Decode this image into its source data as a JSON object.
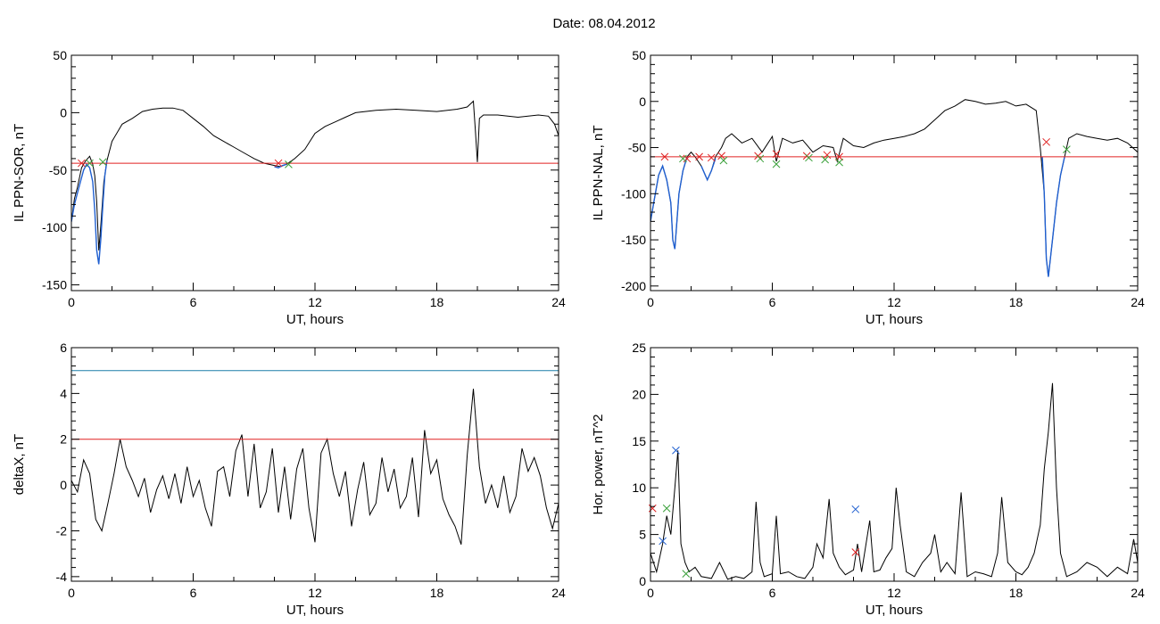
{
  "title": "Date:  08.04.2012",
  "chart_data": [
    {
      "type": "line",
      "ylabel": "IL PPN-SOR, nT",
      "xlabel": "UT, hours",
      "xlim": [
        0,
        24
      ],
      "ylim": [
        -155,
        50
      ],
      "xticks": [
        0,
        6,
        12,
        18,
        24
      ],
      "yticks": [
        -150,
        -100,
        -50,
        0,
        50
      ],
      "series": [
        {
          "color": "#000000",
          "x": [
            0,
            0.15,
            0.3,
            0.5,
            0.7,
            0.9,
            1.05,
            1.15,
            1.25,
            1.35,
            1.45,
            1.6,
            1.75,
            2,
            2.5,
            3,
            3.5,
            4,
            4.5,
            5,
            5.5,
            6,
            6.5,
            7,
            7.5,
            8,
            8.5,
            9,
            9.5,
            10,
            10.3,
            10.6,
            11,
            11.5,
            12,
            12.5,
            13,
            13.5,
            14,
            15,
            16,
            17,
            18,
            19,
            19.5,
            19.8,
            19.9,
            20,
            20.1,
            20.3,
            21,
            22,
            23,
            23.5,
            23.8,
            24
          ],
          "y": [
            -95,
            -75,
            -65,
            -48,
            -42,
            -38,
            -45,
            -55,
            -78,
            -120,
            -98,
            -60,
            -42,
            -25,
            -10,
            -5,
            1,
            3,
            4,
            4,
            2,
            -5,
            -12,
            -20,
            -25,
            -30,
            -35,
            -40,
            -44,
            -46,
            -47,
            -45,
            -40,
            -32,
            -18,
            -12,
            -8,
            -4,
            0,
            2,
            3,
            2,
            1,
            3,
            5,
            10,
            -15,
            -43,
            -5,
            -2,
            -2,
            -4,
            -2,
            -3,
            -10,
            -20
          ]
        },
        {
          "color": "#1f5fd0",
          "x": [
            0,
            0.15,
            0.3,
            0.45,
            0.6,
            0.75,
            0.9,
            1.05,
            1.15,
            1.25,
            1.35,
            1.45,
            1.55,
            1.65,
            1.75
          ],
          "y": [
            -95,
            -80,
            -70,
            -60,
            -50,
            -45,
            -48,
            -60,
            -85,
            -120,
            -132,
            -110,
            -80,
            -55,
            -42
          ]
        },
        {
          "color": "#1f5fd0",
          "x": [
            10,
            10.2,
            10.4,
            10.6
          ],
          "y": [
            -47,
            -48,
            -46,
            -45
          ]
        },
        {
          "color": "#e02020",
          "x": [
            0,
            24
          ],
          "y": [
            -44,
            -44
          ]
        }
      ],
      "markers": [
        {
          "color": "#e02020",
          "x": [
            0.5,
            10.2
          ],
          "y": [
            -44,
            -44
          ]
        },
        {
          "color": "#3aa03a",
          "x": [
            0.9,
            1.55,
            10.7
          ],
          "y": [
            -44,
            -43,
            -45
          ]
        }
      ]
    },
    {
      "type": "line",
      "ylabel": "IL PPN-NAL, nT",
      "xlabel": "UT, hours",
      "xlim": [
        0,
        24
      ],
      "ylim": [
        -205,
        50
      ],
      "xticks": [
        0,
        6,
        12,
        18,
        24
      ],
      "yticks": [
        -200,
        -150,
        -100,
        -50,
        0,
        50
      ],
      "series": [
        {
          "color": "#000000",
          "x": [
            0,
            0.2,
            0.4,
            0.6,
            0.8,
            1,
            1.1,
            1.2,
            1.4,
            1.6,
            1.8,
            2,
            2.2,
            2.5,
            2.8,
            3,
            3.2,
            3.5,
            3.7,
            4,
            4.5,
            5,
            5.5,
            6,
            6.2,
            6.5,
            7,
            7.5,
            8,
            8.5,
            9,
            9.2,
            9.5,
            10,
            10.5,
            11,
            11.5,
            12,
            12.5,
            13,
            13.5,
            14,
            14.5,
            15,
            15.5,
            16,
            16.5,
            17,
            17.5,
            18,
            18.5,
            19,
            19.2,
            19.4,
            19.5,
            19.6,
            19.8,
            20,
            20.2,
            20.4,
            20.6,
            21,
            21.5,
            22,
            22.5,
            23,
            23.5,
            24
          ],
          "y": [
            -130,
            -105,
            -80,
            -70,
            -85,
            -110,
            -150,
            -160,
            -100,
            -75,
            -60,
            -55,
            -60,
            -70,
            -85,
            -75,
            -60,
            -50,
            -40,
            -35,
            -45,
            -40,
            -55,
            -38,
            -65,
            -40,
            -45,
            -42,
            -55,
            -48,
            -50,
            -65,
            -40,
            -48,
            -50,
            -45,
            -42,
            -40,
            -38,
            -35,
            -30,
            -20,
            -10,
            -5,
            2,
            0,
            -3,
            -2,
            0,
            -5,
            -3,
            -10,
            -50,
            -100,
            -170,
            -190,
            -150,
            -110,
            -80,
            -60,
            -40,
            -35,
            -38,
            -40,
            -42,
            -40,
            -45,
            -55
          ]
        },
        {
          "color": "#1f5fd0",
          "x": [
            0,
            0.2,
            0.4,
            0.6,
            0.8,
            1,
            1.1,
            1.2,
            1.4,
            1.6,
            1.8
          ],
          "y": [
            -130,
            -105,
            -80,
            -70,
            -85,
            -110,
            -150,
            -160,
            -100,
            -75,
            -60
          ]
        },
        {
          "color": "#1f5fd0",
          "x": [
            2.5,
            2.8,
            3,
            3.2
          ],
          "y": [
            -70,
            -85,
            -75,
            -62
          ]
        },
        {
          "color": "#1f5fd0",
          "x": [
            19.3,
            19.4,
            19.5,
            19.6,
            19.8,
            20,
            20.2,
            20.4
          ],
          "y": [
            -60,
            -100,
            -170,
            -190,
            -150,
            -110,
            -80,
            -60
          ]
        },
        {
          "color": "#e02020",
          "x": [
            0,
            24
          ],
          "y": [
            -60,
            -60
          ]
        }
      ],
      "markers": [
        {
          "color": "#e02020",
          "x": [
            0.7,
            1.8,
            2.4,
            3.0,
            3.5,
            5.3,
            6.2,
            7.7,
            8.7,
            9.3,
            19.5
          ],
          "y": [
            -60,
            -62,
            -60,
            -61,
            -59,
            -59,
            -57,
            -59,
            -58,
            -60,
            -44
          ]
        },
        {
          "color": "#3aa03a",
          "x": [
            1.6,
            3.6,
            5.4,
            6.2,
            7.8,
            8.6,
            9.3,
            20.5
          ],
          "y": [
            -62,
            -64,
            -62,
            -68,
            -61,
            -63,
            -66,
            -52
          ]
        }
      ]
    },
    {
      "type": "line",
      "ylabel": "deltaX, nT",
      "xlabel": "UT, hours",
      "xlim": [
        0,
        24
      ],
      "ylim": [
        -4.2,
        6
      ],
      "xticks": [
        0,
        6,
        12,
        18,
        24
      ],
      "yticks": [
        -4,
        -2,
        0,
        2,
        4,
        6
      ],
      "series": [
        {
          "color": "#000000",
          "x": [
            0,
            0.3,
            0.6,
            0.9,
            1.2,
            1.5,
            1.8,
            2.1,
            2.4,
            2.7,
            3,
            3.3,
            3.6,
            3.9,
            4.2,
            4.5,
            4.8,
            5.1,
            5.4,
            5.7,
            6,
            6.3,
            6.6,
            6.9,
            7.2,
            7.5,
            7.8,
            8.1,
            8.4,
            8.7,
            9,
            9.3,
            9.6,
            9.9,
            10.2,
            10.5,
            10.8,
            11.1,
            11.4,
            11.7,
            12,
            12.3,
            12.6,
            12.9,
            13.2,
            13.5,
            13.8,
            14.1,
            14.4,
            14.7,
            15,
            15.3,
            15.6,
            15.9,
            16.2,
            16.5,
            16.8,
            17.1,
            17.4,
            17.7,
            18,
            18.3,
            18.6,
            18.9,
            19.2,
            19.5,
            19.8,
            20.1,
            20.4,
            20.7,
            21,
            21.3,
            21.6,
            21.9,
            22.2,
            22.5,
            22.8,
            23.1,
            23.4,
            23.7,
            24
          ],
          "y": [
            0.2,
            -0.3,
            1.1,
            0.5,
            -1.5,
            -2.0,
            -0.8,
            0.5,
            2.0,
            0.8,
            0.2,
            -0.5,
            0.3,
            -1.2,
            -0.2,
            0.4,
            -0.6,
            0.5,
            -0.8,
            0.8,
            -0.5,
            0.2,
            -1.0,
            -1.8,
            0.6,
            0.8,
            -0.5,
            1.5,
            2.2,
            -0.5,
            1.8,
            -1.0,
            -0.3,
            1.6,
            -1.2,
            0.8,
            -1.5,
            0.7,
            1.6,
            -1.0,
            -2.5,
            1.4,
            2.0,
            0.5,
            -0.5,
            0.6,
            -1.8,
            -0.2,
            1.0,
            -1.3,
            -0.8,
            1.2,
            -0.3,
            0.7,
            -1.0,
            -0.5,
            1.2,
            -1.4,
            2.4,
            0.5,
            1.1,
            -0.6,
            -1.3,
            -1.8,
            -2.6,
            1.3,
            4.2,
            0.8,
            -0.8,
            0.0,
            -1.0,
            0.4,
            -1.2,
            -0.5,
            1.6,
            0.6,
            1.2,
            0.4,
            -1.0,
            -1.9,
            -0.8
          ]
        },
        {
          "color": "#1b7fa8",
          "x": [
            0,
            24
          ],
          "y": [
            5,
            5
          ]
        },
        {
          "color": "#e02020",
          "x": [
            0,
            24
          ],
          "y": [
            2,
            2
          ]
        }
      ]
    },
    {
      "type": "line",
      "ylabel": "Hor. power, nT^2",
      "xlabel": "UT, hours",
      "xlim": [
        0,
        24
      ],
      "ylim": [
        0,
        25
      ],
      "xticks": [
        0,
        6,
        12,
        18,
        24
      ],
      "yticks": [
        0,
        5,
        10,
        15,
        20,
        25
      ],
      "series": [
        {
          "color": "#000000",
          "x": [
            0,
            0.3,
            0.6,
            0.8,
            1,
            1.2,
            1.35,
            1.5,
            1.7,
            1.9,
            2.2,
            2.5,
            3,
            3.4,
            3.8,
            4.2,
            4.6,
            5,
            5.2,
            5.4,
            5.6,
            6,
            6.2,
            6.4,
            6.8,
            7.2,
            7.6,
            8,
            8.2,
            8.5,
            8.8,
            9,
            9.3,
            9.6,
            10,
            10.2,
            10.4,
            10.8,
            11,
            11.3,
            11.6,
            11.9,
            12.1,
            12.3,
            12.6,
            13,
            13.4,
            13.8,
            14,
            14.3,
            14.6,
            15,
            15.3,
            15.6,
            16,
            16.4,
            16.8,
            17.1,
            17.3,
            17.6,
            18,
            18.3,
            18.6,
            18.9,
            19.2,
            19.4,
            19.6,
            19.8,
            20,
            20.2,
            20.5,
            21,
            21.5,
            22,
            22.5,
            23,
            23.5,
            23.8,
            24
          ],
          "y": [
            3,
            1,
            4,
            7,
            5,
            10,
            14,
            4,
            2,
            1,
            1.5,
            0.5,
            0.3,
            2,
            0.2,
            0.5,
            0.3,
            1,
            8.5,
            2,
            0.5,
            0.8,
            7,
            0.8,
            1,
            0.5,
            0.3,
            1.5,
            4,
            2.5,
            8.8,
            3,
            1.5,
            0.7,
            1.2,
            4,
            1,
            6.5,
            1,
            1.2,
            2.5,
            3.5,
            10,
            6,
            1,
            0.5,
            2,
            3,
            5,
            1,
            2,
            0.8,
            9.5,
            0.5,
            1,
            0.8,
            0.5,
            3,
            9,
            2,
            1,
            0.7,
            1.5,
            3,
            6,
            12,
            16,
            21.2,
            10,
            3,
            0.5,
            1,
            2,
            1.5,
            0.5,
            1.5,
            0.8,
            4.5,
            2
          ]
        },
        {
          "color": "#e02020",
          "x": [
            0,
            24
          ],
          "y": [
            25,
            25
          ]
        }
      ],
      "markers": [
        {
          "color": "#e02020",
          "x": [
            0.1,
            10.1
          ],
          "y": [
            7.8,
            3.1
          ]
        },
        {
          "color": "#1f5fd0",
          "x": [
            0.6,
            1.25,
            10.1
          ],
          "y": [
            4.3,
            14,
            7.7
          ]
        },
        {
          "color": "#3aa03a",
          "x": [
            0.8,
            1.75
          ],
          "y": [
            7.8,
            0.8
          ]
        }
      ]
    }
  ]
}
